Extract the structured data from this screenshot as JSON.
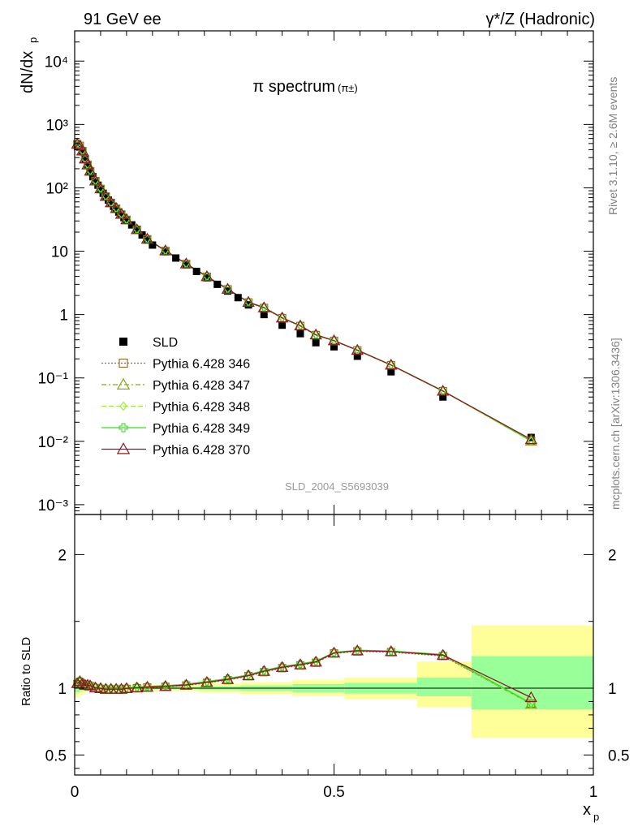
{
  "header": {
    "left": "91 GeV ee",
    "right": "γ*/Z (Hadronic)"
  },
  "side_labels": {
    "rivet": "Rivet 3.1.10, ≥ 2.6M events",
    "mcplots": "mcplots.cern.ch [arXiv:1306.3436]"
  },
  "colors": {
    "SLD": "#000000",
    "346": "#9b6b33",
    "347": "#8aa818",
    "348": "#9de83a",
    "349": "#3fd82a",
    "370": "#8b1a24",
    "band_inner": "#99ff99",
    "band_outer": "#ffff99"
  },
  "chart_data": [
    {
      "type": "line",
      "title": "π spectrum",
      "title_suffix": "(π±)",
      "watermark": "SLD_2004_S5693039",
      "ylabel_main": "dN/dx",
      "ylabel_sub": "p",
      "yscale": "log",
      "ylim": [
        0.0007,
        30000
      ],
      "xlim": [
        0,
        1
      ],
      "ytick_labels": [
        "10⁻³",
        "10⁻²",
        "10⁻¹",
        "1",
        "10",
        "10²",
        "10³",
        "10⁴"
      ],
      "legend_placement": "center-left",
      "series": [
        {
          "name": "SLD",
          "marker": "square",
          "x": [
            0.005,
            0.01,
            0.015,
            0.02,
            0.025,
            0.03,
            0.035,
            0.04,
            0.045,
            0.05,
            0.055,
            0.06,
            0.065,
            0.07,
            0.075,
            0.08,
            0.085,
            0.09,
            0.095,
            0.1,
            0.11,
            0.12,
            0.13,
            0.14,
            0.15,
            0.175,
            0.195,
            0.215,
            0.235,
            0.255,
            0.275,
            0.295,
            0.315,
            0.335,
            0.365,
            0.4,
            0.435,
            0.465,
            0.5,
            0.545,
            0.61,
            0.71,
            0.88
          ],
          "y": [
            470,
            440,
            370,
            280,
            225,
            180,
            150,
            125,
            110,
            95,
            82,
            72,
            64,
            57,
            51,
            46,
            41.5,
            37.5,
            34,
            31,
            26,
            21.5,
            18,
            15,
            12.5,
            9.8,
            7.8,
            6.1,
            4.8,
            3.8,
            3.0,
            2.35,
            1.85,
            1.42,
            1.0,
            0.68,
            0.5,
            0.36,
            0.31,
            0.22,
            0.125,
            0.05,
            0.0115
          ]
        },
        {
          "name": "Pythia 6.428 346",
          "marker": "open-square",
          "x": [
            0.005,
            0.01,
            0.015,
            0.02,
            0.025,
            0.03,
            0.04,
            0.05,
            0.06,
            0.07,
            0.08,
            0.09,
            0.1,
            0.12,
            0.14,
            0.175,
            0.215,
            0.255,
            0.295,
            0.335,
            0.365,
            0.4,
            0.435,
            0.465,
            0.5,
            0.545,
            0.61,
            0.71,
            0.88
          ],
          "y": [
            485,
            460,
            380,
            285,
            230,
            183,
            128,
            96,
            73,
            58,
            47,
            38,
            31.2,
            21.8,
            15.4,
            10.1,
            6.3,
            3.95,
            2.5,
            1.55,
            1.27,
            0.88,
            0.66,
            0.475,
            0.385,
            0.272,
            0.159,
            0.062,
            0.0102
          ]
        },
        {
          "name": "Pythia 6.428 347",
          "marker": "open-triangle",
          "x": [
            0.005,
            0.01,
            0.015,
            0.02,
            0.025,
            0.03,
            0.04,
            0.05,
            0.06,
            0.07,
            0.08,
            0.09,
            0.1,
            0.12,
            0.14,
            0.175,
            0.215,
            0.255,
            0.295,
            0.335,
            0.365,
            0.4,
            0.435,
            0.465,
            0.5,
            0.545,
            0.61,
            0.71,
            0.88
          ],
          "y": [
            488,
            462,
            382,
            286,
            231,
            184,
            128.5,
            96.5,
            73.3,
            58.2,
            47.2,
            38.2,
            31.3,
            21.9,
            15.5,
            10.15,
            6.32,
            3.97,
            2.51,
            1.56,
            1.28,
            0.885,
            0.665,
            0.478,
            0.387,
            0.273,
            0.16,
            0.062,
            0.0101
          ]
        },
        {
          "name": "Pythia 6.428 348",
          "marker": "open-diamond",
          "x": [
            0.005,
            0.01,
            0.015,
            0.02,
            0.025,
            0.03,
            0.04,
            0.05,
            0.06,
            0.07,
            0.08,
            0.09,
            0.1,
            0.12,
            0.14,
            0.175,
            0.215,
            0.255,
            0.295,
            0.335,
            0.365,
            0.4,
            0.435,
            0.465,
            0.5,
            0.545,
            0.61,
            0.71,
            0.88
          ],
          "y": [
            490,
            463,
            383,
            287,
            232,
            185,
            129,
            97,
            73.5,
            58.4,
            47.4,
            38.4,
            31.5,
            22,
            15.6,
            10.2,
            6.35,
            4.0,
            2.53,
            1.57,
            1.29,
            0.89,
            0.668,
            0.48,
            0.388,
            0.274,
            0.16,
            0.0625,
            0.0101
          ]
        },
        {
          "name": "Pythia 6.428 349",
          "marker": "open-cross",
          "x": [
            0.005,
            0.01,
            0.015,
            0.02,
            0.025,
            0.03,
            0.04,
            0.05,
            0.06,
            0.07,
            0.08,
            0.09,
            0.1,
            0.12,
            0.14,
            0.175,
            0.215,
            0.255,
            0.295,
            0.335,
            0.365,
            0.4,
            0.435,
            0.465,
            0.5,
            0.545,
            0.61,
            0.71,
            0.88
          ],
          "y": [
            490,
            464,
            384,
            288,
            232,
            185,
            129,
            97,
            73.6,
            58.5,
            47.5,
            38.5,
            31.6,
            22.1,
            15.7,
            10.25,
            6.38,
            4.02,
            2.55,
            1.58,
            1.3,
            0.895,
            0.67,
            0.482,
            0.39,
            0.275,
            0.161,
            0.063,
            0.0102
          ]
        },
        {
          "name": "Pythia 6.428 370",
          "marker": "open-triangle",
          "x": [
            0.005,
            0.01,
            0.015,
            0.02,
            0.025,
            0.03,
            0.04,
            0.05,
            0.06,
            0.07,
            0.08,
            0.09,
            0.1,
            0.12,
            0.14,
            0.175,
            0.215,
            0.255,
            0.295,
            0.335,
            0.365,
            0.4,
            0.435,
            0.465,
            0.5,
            0.545,
            0.61,
            0.71,
            0.88
          ],
          "y": [
            489,
            463,
            383,
            287,
            231,
            184,
            128.7,
            96.6,
            73.4,
            58.3,
            47.3,
            38.3,
            31.4,
            21.95,
            15.55,
            10.18,
            6.33,
            3.98,
            2.52,
            1.565,
            1.285,
            0.887,
            0.666,
            0.479,
            0.388,
            0.274,
            0.16,
            0.062,
            0.0107
          ]
        }
      ]
    },
    {
      "type": "line",
      "ylabel": "Ratio to SLD",
      "xlabel_main": "x",
      "xlabel_sub": "p",
      "xlim": [
        0,
        1
      ],
      "ylim": [
        0.35,
        2.3
      ],
      "xtick_labels": [
        "0",
        "0.5",
        "1"
      ],
      "ytick_labels": [
        "0.5",
        "1",
        "2"
      ],
      "reference": 1.0,
      "bands": [
        {
          "x0": 0.0,
          "x1": 0.01,
          "inner": [
            0.97,
            1.03
          ],
          "outer": [
            0.93,
            1.08
          ]
        },
        {
          "x0": 0.01,
          "x1": 0.02,
          "inner": [
            0.98,
            1.02
          ],
          "outer": [
            0.95,
            1.05
          ]
        },
        {
          "x0": 0.02,
          "x1": 0.24,
          "inner": [
            0.99,
            1.01
          ],
          "outer": [
            0.975,
            1.025
          ]
        },
        {
          "x0": 0.24,
          "x1": 0.32,
          "inner": [
            0.985,
            1.015
          ],
          "outer": [
            0.965,
            1.035
          ]
        },
        {
          "x0": 0.32,
          "x1": 0.42,
          "inner": [
            0.98,
            1.02
          ],
          "outer": [
            0.955,
            1.045
          ]
        },
        {
          "x0": 0.42,
          "x1": 0.52,
          "inner": [
            0.97,
            1.03
          ],
          "outer": [
            0.94,
            1.06
          ]
        },
        {
          "x0": 0.52,
          "x1": 0.66,
          "inner": [
            0.96,
            1.04
          ],
          "outer": [
            0.92,
            1.08
          ]
        },
        {
          "x0": 0.66,
          "x1": 0.765,
          "inner": [
            0.94,
            1.08
          ],
          "outer": [
            0.86,
            1.2
          ]
        },
        {
          "x0": 0.765,
          "x1": 1.0,
          "inner": [
            0.84,
            1.24
          ],
          "outer": [
            0.63,
            1.47
          ]
        }
      ],
      "series": [
        {
          "name": "Pythia 6.428 346",
          "x": [
            0.005,
            0.01,
            0.015,
            0.02,
            0.025,
            0.03,
            0.04,
            0.05,
            0.06,
            0.07,
            0.08,
            0.09,
            0.1,
            0.12,
            0.14,
            0.175,
            0.215,
            0.255,
            0.295,
            0.335,
            0.365,
            0.4,
            0.435,
            0.465,
            0.5,
            0.545,
            0.61,
            0.71,
            0.88
          ],
          "y": [
            1.03,
            1.045,
            1.03,
            1.02,
            1.02,
            1.015,
            1.0,
            0.995,
            0.99,
            0.99,
            0.99,
            0.99,
            0.995,
            1.0,
            1.005,
            1.01,
            1.02,
            1.04,
            1.06,
            1.09,
            1.12,
            1.15,
            1.17,
            1.19,
            1.26,
            1.275,
            1.27,
            1.24,
            0.885
          ]
        },
        {
          "name": "Pythia 6.428 347",
          "x": [
            0.005,
            0.01,
            0.015,
            0.02,
            0.025,
            0.03,
            0.04,
            0.05,
            0.06,
            0.07,
            0.08,
            0.09,
            0.1,
            0.12,
            0.14,
            0.175,
            0.215,
            0.255,
            0.295,
            0.335,
            0.365,
            0.4,
            0.435,
            0.465,
            0.5,
            0.545,
            0.61,
            0.71,
            0.88
          ],
          "y": [
            1.035,
            1.05,
            1.032,
            1.022,
            1.022,
            1.018,
            1.002,
            0.997,
            0.992,
            0.992,
            0.992,
            0.992,
            0.997,
            1.002,
            1.007,
            1.013,
            1.022,
            1.043,
            1.064,
            1.093,
            1.125,
            1.155,
            1.175,
            1.195,
            1.263,
            1.28,
            1.275,
            1.245,
            0.88
          ]
        },
        {
          "name": "Pythia 6.428 348",
          "x": [
            0.005,
            0.01,
            0.015,
            0.02,
            0.025,
            0.03,
            0.04,
            0.05,
            0.06,
            0.07,
            0.08,
            0.09,
            0.1,
            0.12,
            0.14,
            0.175,
            0.215,
            0.255,
            0.295,
            0.335,
            0.365,
            0.4,
            0.435,
            0.465,
            0.5,
            0.545,
            0.61,
            0.71,
            0.88
          ],
          "y": [
            1.04,
            1.052,
            1.035,
            1.025,
            1.025,
            1.02,
            1.005,
            1.0,
            0.995,
            0.995,
            0.995,
            0.995,
            1.0,
            1.005,
            1.01,
            1.016,
            1.026,
            1.047,
            1.068,
            1.097,
            1.13,
            1.16,
            1.18,
            1.2,
            1.265,
            1.282,
            1.277,
            1.25,
            0.88
          ]
        },
        {
          "name": "Pythia 6.428 349",
          "x": [
            0.005,
            0.01,
            0.015,
            0.02,
            0.025,
            0.03,
            0.04,
            0.05,
            0.06,
            0.07,
            0.08,
            0.09,
            0.1,
            0.12,
            0.14,
            0.175,
            0.215,
            0.255,
            0.295,
            0.335,
            0.365,
            0.4,
            0.435,
            0.465,
            0.5,
            0.545,
            0.61,
            0.71,
            0.88
          ],
          "y": [
            1.04,
            1.054,
            1.037,
            1.027,
            1.027,
            1.022,
            1.007,
            1.002,
            0.997,
            0.997,
            0.997,
            0.997,
            1.002,
            1.008,
            1.013,
            1.019,
            1.03,
            1.05,
            1.072,
            1.1,
            1.133,
            1.162,
            1.182,
            1.202,
            1.267,
            1.284,
            1.279,
            1.252,
            0.887
          ]
        },
        {
          "name": "Pythia 6.428 370",
          "x": [
            0.005,
            0.01,
            0.015,
            0.02,
            0.025,
            0.03,
            0.04,
            0.05,
            0.06,
            0.07,
            0.08,
            0.09,
            0.1,
            0.12,
            0.14,
            0.175,
            0.215,
            0.255,
            0.295,
            0.335,
            0.365,
            0.4,
            0.435,
            0.465,
            0.5,
            0.545,
            0.61,
            0.71,
            0.88
          ],
          "y": [
            1.035,
            1.05,
            1.033,
            1.023,
            1.023,
            1.018,
            1.003,
            0.998,
            0.993,
            0.993,
            0.993,
            0.993,
            0.998,
            1.003,
            1.008,
            1.014,
            1.024,
            1.044,
            1.066,
            1.094,
            1.127,
            1.156,
            1.176,
            1.196,
            1.264,
            1.28,
            1.274,
            1.247,
            0.93
          ]
        }
      ]
    }
  ]
}
